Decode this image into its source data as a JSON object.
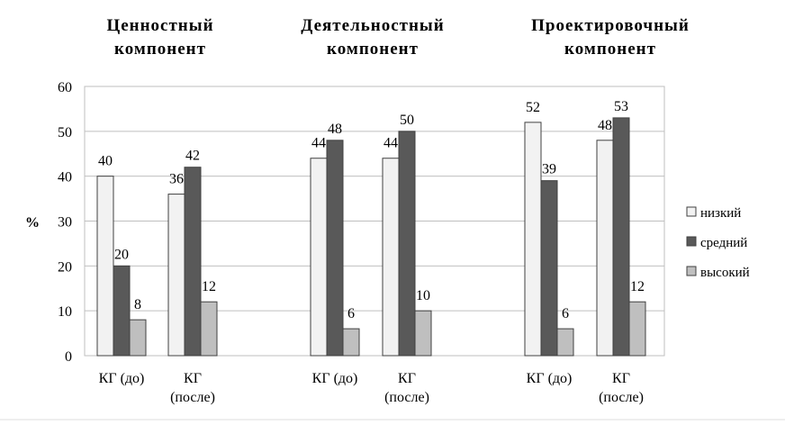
{
  "chart_data": {
    "type": "bar",
    "ylabel": "%",
    "ylim": [
      0,
      60
    ],
    "yticks": [
      0,
      10,
      20,
      30,
      40,
      50,
      60
    ],
    "grid": true,
    "legend_position": "right",
    "group_titles": [
      [
        "Ценностный",
        "компонент"
      ],
      [
        "Деятельностный",
        "компонент"
      ],
      [
        "Проектировочный",
        "компонент"
      ]
    ],
    "categories": [
      [
        "КГ (до)"
      ],
      [
        "КГ",
        "(после)"
      ],
      [
        "КГ (до)"
      ],
      [
        "КГ",
        "(после)"
      ],
      [
        "КГ (до)"
      ],
      [
        "КГ",
        "(после)"
      ]
    ],
    "series": [
      {
        "name": "низкий",
        "color": "#f2f2f2",
        "values": [
          40,
          36,
          44,
          44,
          52,
          48
        ]
      },
      {
        "name": "средний",
        "color": "#595959",
        "values": [
          20,
          42,
          48,
          50,
          39,
          53
        ]
      },
      {
        "name": "высокий",
        "color": "#bfbfbf",
        "values": [
          8,
          12,
          6,
          10,
          6,
          12
        ]
      }
    ]
  }
}
